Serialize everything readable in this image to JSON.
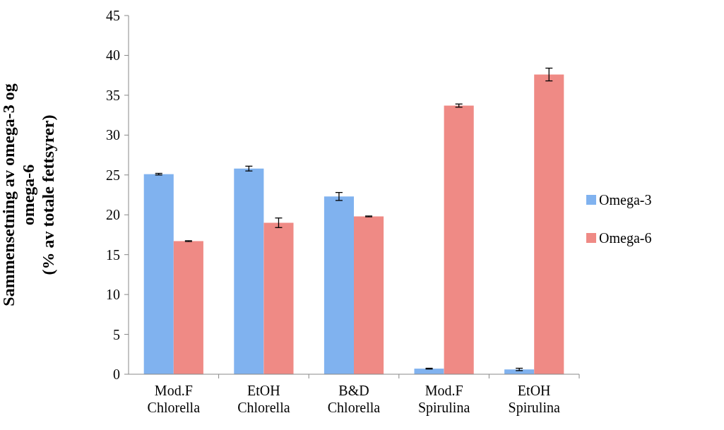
{
  "chart_data": {
    "type": "bar",
    "ylabel": "Sammensetning av omega-3 og\nomega-6\n(% av totale fettsyrer)",
    "categories": [
      "Mod.F\nChlorella",
      "EtOH\nChlorella",
      "B&D\nChlorella",
      "Mod.F\nSpirulina",
      "EtOH\nSpirulina"
    ],
    "series": [
      {
        "name": "Omega-3",
        "color": "#80b2ef",
        "values": [
          25.1,
          25.8,
          22.3,
          0.7,
          0.6
        ],
        "errors": [
          0.1,
          0.3,
          0.5,
          0.05,
          0.15
        ]
      },
      {
        "name": "Omega-6",
        "color": "#ef8a85",
        "values": [
          16.7,
          19.0,
          19.8,
          33.7,
          37.6
        ],
        "errors": [
          0.05,
          0.6,
          0.05,
          0.2,
          0.8
        ]
      }
    ],
    "ylim": [
      0,
      45
    ],
    "yticks": [
      0,
      5,
      10,
      15,
      20,
      25,
      30,
      35,
      40,
      45
    ],
    "grid": false,
    "legend": "right"
  }
}
